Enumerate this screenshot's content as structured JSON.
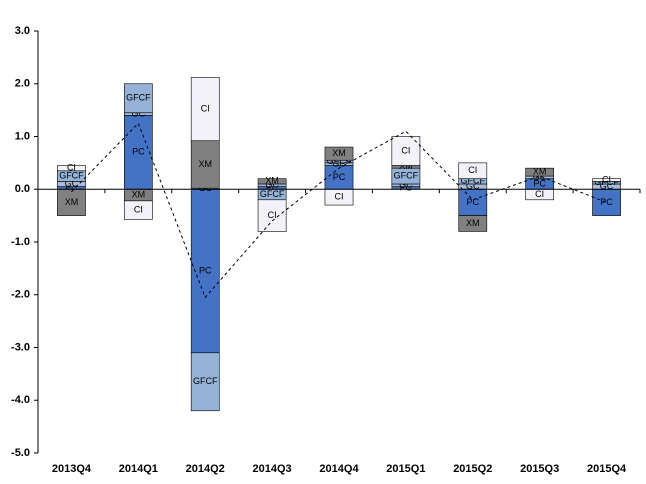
{
  "chart_data": {
    "type": "bar",
    "stacked": true,
    "categories": [
      "2013Q4",
      "2014Q1",
      "2014Q2",
      "2014Q3",
      "2014Q4",
      "2015Q1",
      "2015Q2",
      "2015Q3",
      "2015Q4"
    ],
    "series": [
      {
        "name": "PC",
        "color": "#4472c4",
        "values": [
          0.05,
          1.4,
          -3.1,
          0.05,
          0.45,
          0.05,
          -0.5,
          0.2,
          -0.5
        ]
      },
      {
        "name": "GC",
        "color": "#a9bcd9",
        "values": [
          0.1,
          0.05,
          0.02,
          0.05,
          0.05,
          0.05,
          0.1,
          0.05,
          0.1
        ]
      },
      {
        "name": "GFCF",
        "color": "#95b3d7",
        "values": [
          0.2,
          0.55,
          -1.1,
          -0.2,
          0.05,
          0.3,
          0.1,
          0.0,
          0.05
        ]
      },
      {
        "name": "XM",
        "color": "#808080",
        "values": [
          -0.5,
          -0.22,
          0.9,
          0.1,
          0.25,
          0.05,
          -0.3,
          0.15,
          0.0
        ]
      },
      {
        "name": "CI",
        "color": "#f2f2f8",
        "values": [
          0.1,
          -0.35,
          1.2,
          -0.6,
          -0.3,
          0.55,
          0.3,
          -0.2,
          0.05
        ]
      }
    ],
    "total": [
      -0.05,
      1.25,
      -2.05,
      -0.6,
      0.4,
      1.1,
      -0.2,
      0.25,
      -0.25
    ],
    "ylim": [
      -5,
      3
    ],
    "yticks": [
      {
        "value": -5,
        "label": "-5.0"
      },
      {
        "value": -4,
        "label": "-4.0"
      },
      {
        "value": -3,
        "label": "-3.0"
      },
      {
        "value": -2,
        "label": "-2.0"
      },
      {
        "value": -1,
        "label": "-1.0"
      },
      {
        "value": 0,
        "label": "0.0"
      },
      {
        "value": 1,
        "label": "1.0"
      },
      {
        "value": 2,
        "label": "2.0"
      },
      {
        "value": 3,
        "label": "3.0"
      }
    ]
  }
}
